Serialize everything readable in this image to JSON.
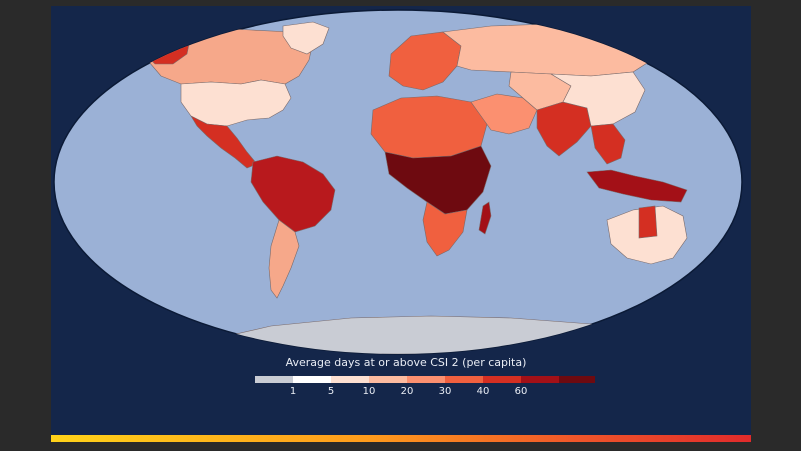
{
  "legend": {
    "title": "Average days at or above CSI 2 (per capita)",
    "ticks": [
      "1",
      "5",
      "10",
      "20",
      "30",
      "40",
      "60"
    ],
    "colors": [
      "#c9ccd4",
      "#ffffff",
      "#fde0d2",
      "#fcbba0",
      "#fb9070",
      "#f0603f",
      "#d42f22",
      "#a31017",
      "#6e0a10"
    ]
  },
  "colors": {
    "background_outer": "#2a2a2a",
    "frame": "#14264a",
    "ocean": "#9bb1d6",
    "no_data": "#c9ccd4",
    "accent_gradient": [
      "#ffd21a",
      "#ff9c1c",
      "#e12b2b"
    ]
  },
  "chart_data": {
    "type": "choropleth",
    "title": "",
    "legend_title": "Average days at or above CSI 2 (per capita)",
    "legend_bins": [
      "<1",
      "1-5",
      "5-10",
      "10-20",
      "20-30",
      "30-40",
      "40-60",
      ">60"
    ],
    "regions": [
      {
        "name": "North America (north)",
        "level": "20-30"
      },
      {
        "name": "Alaska",
        "level": "40-60"
      },
      {
        "name": "United States",
        "level": "1-5"
      },
      {
        "name": "Mexico & Central America",
        "level": "40-60"
      },
      {
        "name": "Northern South America / Amazon",
        "level": "40-60"
      },
      {
        "name": "Southern South America",
        "level": "10-20"
      },
      {
        "name": "Greenland",
        "level": "5-10"
      },
      {
        "name": "Europe",
        "level": "20-30"
      },
      {
        "name": "Russia",
        "level": "10-20"
      },
      {
        "name": "North Africa",
        "level": "30-40"
      },
      {
        "name": "Central Africa",
        "level": ">60"
      },
      {
        "name": "Southern Africa",
        "level": "30-40"
      },
      {
        "name": "Madagascar",
        "level": "40-60"
      },
      {
        "name": "Middle East",
        "level": "20-30"
      },
      {
        "name": "Central Asia",
        "level": "10-20"
      },
      {
        "name": "South Asia",
        "level": "40-60"
      },
      {
        "name": "China",
        "level": "5-10"
      },
      {
        "name": "Southeast Asia",
        "level": "40-60"
      },
      {
        "name": "Indonesia & New Guinea",
        "level": ">60"
      },
      {
        "name": "Australia",
        "level": "10-20"
      },
      {
        "name": "Northern Territory (Australia)",
        "level": "40-60"
      },
      {
        "name": "Antarctica",
        "level": "no data"
      }
    ]
  }
}
